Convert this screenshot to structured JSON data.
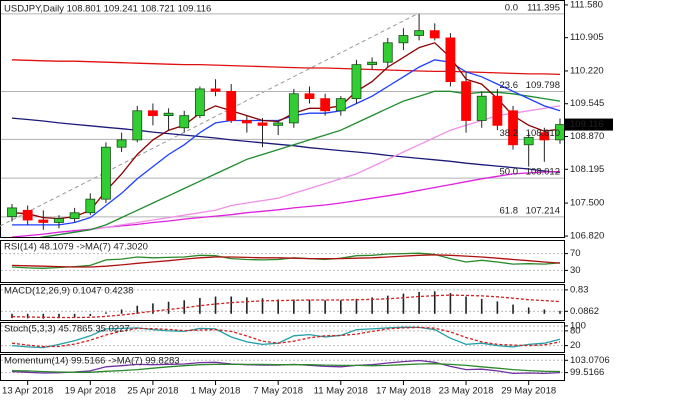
{
  "chart_data": {
    "type": "candlestick",
    "title": "USDJPY,Daily  108.801 109.241 108.721 109.116",
    "categories": [
      null,
      "13 Apr 2018",
      null,
      null,
      null,
      "19 Apr 2018",
      null,
      null,
      null,
      "25 Apr 2018",
      null,
      null,
      null,
      "1 May 2018",
      null,
      null,
      null,
      "7 May 2018",
      null,
      null,
      null,
      "11 May 2018",
      null,
      null,
      null,
      "17 May 2018",
      null,
      null,
      null,
      "23 May 2018",
      null,
      null,
      null,
      "29 May 2018",
      null,
      null
    ],
    "open": [
      107.22,
      107.35,
      107.15,
      107.1,
      107.18,
      107.3,
      107.58,
      108.65,
      108.8,
      109.4,
      109.3,
      109.05,
      109.3,
      109.85,
      109.8,
      109.2,
      109.15,
      109.1,
      109.15,
      109.75,
      109.65,
      109.4,
      109.65,
      110.35,
      110.4,
      110.8,
      110.95,
      111.05,
      110.9,
      110.0,
      109.2,
      109.7,
      109.4,
      108.7,
      108.95,
      108.801
    ],
    "high": [
      107.48,
      107.45,
      107.35,
      107.25,
      107.4,
      107.7,
      108.75,
      108.95,
      109.5,
      109.55,
      109.45,
      109.4,
      109.9,
      110.05,
      109.95,
      109.3,
      109.25,
      109.2,
      109.85,
      109.9,
      109.75,
      109.7,
      110.45,
      110.5,
      110.9,
      111.1,
      111.395,
      111.2,
      111.0,
      110.2,
      109.8,
      109.85,
      109.5,
      108.95,
      109.05,
      109.241
    ],
    "low": [
      107.12,
      107.05,
      106.95,
      106.98,
      107.1,
      107.25,
      107.5,
      108.55,
      108.75,
      109.1,
      109.0,
      108.95,
      109.25,
      109.7,
      109.15,
      108.95,
      108.65,
      108.9,
      109.05,
      109.55,
      109.3,
      109.3,
      109.55,
      110.25,
      110.3,
      110.65,
      110.85,
      110.85,
      109.9,
      108.95,
      109.05,
      109.0,
      108.6,
      108.25,
      108.35,
      108.721
    ],
    "close": [
      107.4,
      107.15,
      107.1,
      107.18,
      107.3,
      107.58,
      108.65,
      108.8,
      109.4,
      109.3,
      109.35,
      109.3,
      109.85,
      109.8,
      109.2,
      109.15,
      109.1,
      109.15,
      109.75,
      109.65,
      109.4,
      109.65,
      110.35,
      110.4,
      110.8,
      110.95,
      111.05,
      110.9,
      110.0,
      109.2,
      109.7,
      109.1,
      108.7,
      108.85,
      108.8,
      109.116
    ],
    "up_color": "#32cd32",
    "down_color": "#ff0000",
    "ylim": [
      106.78,
      111.64
    ],
    "yticks": [
      {
        "value": 111.58,
        "label": "111.580"
      },
      110.905,
      {
        "value": 110.22,
        "label": "110.220"
      },
      109.545,
      {
        "value": 108.87,
        "label": "108.870"
      },
      108.195,
      {
        "value": 107.5,
        "label": "107.500"
      },
      {
        "value": 106.82,
        "label": "106.820"
      }
    ],
    "last_price": 109.116,
    "fib_levels": [
      {
        "level": "0.0",
        "price": 111.395
      },
      {
        "level": "23.6",
        "price": 109.798
      },
      {
        "level": "38.2",
        "price": 108.81
      },
      {
        "level": "50.0",
        "price": 108.012
      },
      {
        "level": "61.8",
        "price": 107.214
      }
    ],
    "fib_price_labels": [
      "111.395",
      "109.798",
      "108.810",
      "108.012",
      "107.214"
    ],
    "series": [
      {
        "color": "#e01010",
        "values": [
          110.45,
          110.44,
          110.43,
          110.42,
          110.42,
          110.41,
          110.4,
          110.39,
          110.38,
          110.37,
          110.36,
          110.35,
          110.35,
          110.34,
          110.33,
          110.32,
          110.31,
          110.3,
          110.29,
          110.28,
          110.28,
          110.27,
          110.26,
          110.25,
          110.24,
          110.23,
          110.22,
          110.21,
          110.21,
          110.2,
          110.19,
          110.18,
          110.17,
          110.16,
          110.16,
          110.15
        ]
      },
      {
        "color": "#1a1a7a",
        "values": [
          109.25,
          109.22,
          109.19,
          109.15,
          109.12,
          109.09,
          109.06,
          109.03,
          109.0,
          108.96,
          108.93,
          108.9,
          108.87,
          108.84,
          108.8,
          108.77,
          108.74,
          108.71,
          108.68,
          108.64,
          108.61,
          108.58,
          108.55,
          108.52,
          108.48,
          108.45,
          108.42,
          108.39,
          108.36,
          108.32,
          108.29,
          108.26,
          108.23,
          108.2,
          108.16,
          108.13
        ]
      },
      {
        "color": "#e020e0",
        "values": [
          106.8,
          106.83,
          106.86,
          106.9,
          106.93,
          106.96,
          107.0,
          107.03,
          107.06,
          107.1,
          107.13,
          107.17,
          107.2,
          107.23,
          107.26,
          107.3,
          107.33,
          107.36,
          107.4,
          107.43,
          107.46,
          107.5,
          107.55,
          107.6,
          107.65,
          107.7,
          107.76,
          107.82,
          107.88,
          107.94,
          108.0,
          108.05,
          108.1,
          108.12,
          108.14,
          108.15
        ]
      },
      {
        "color": "#f090e8",
        "values": [
          106.7,
          106.75,
          106.8,
          106.85,
          106.9,
          106.95,
          107.0,
          107.05,
          107.1,
          107.15,
          107.2,
          107.25,
          107.3,
          107.35,
          107.45,
          107.5,
          107.55,
          107.6,
          107.7,
          107.8,
          107.9,
          108.0,
          108.1,
          108.25,
          108.4,
          108.55,
          108.7,
          108.85,
          109.0,
          109.1,
          109.2,
          109.3,
          109.35,
          109.4,
          109.45,
          109.5
        ]
      },
      {
        "color": "#1e8c2e",
        "values": [
          106.7,
          106.75,
          106.8,
          106.85,
          106.9,
          106.95,
          107.05,
          107.2,
          107.35,
          107.5,
          107.65,
          107.8,
          107.95,
          108.1,
          108.25,
          108.4,
          108.5,
          108.6,
          108.7,
          108.8,
          108.9,
          109.0,
          109.15,
          109.3,
          109.45,
          109.6,
          109.7,
          109.8,
          109.8,
          109.75,
          109.78,
          109.78,
          109.75,
          109.7,
          109.65,
          109.6
        ]
      },
      {
        "color": "#1f3fff",
        "values": [
          107.05,
          107.05,
          107.05,
          107.05,
          107.1,
          107.2,
          107.45,
          107.7,
          108.0,
          108.25,
          108.5,
          108.7,
          108.95,
          109.15,
          109.2,
          109.2,
          109.2,
          109.2,
          109.3,
          109.35,
          109.35,
          109.4,
          109.55,
          109.7,
          109.9,
          110.1,
          110.3,
          110.45,
          110.4,
          110.2,
          110.1,
          109.95,
          109.8,
          109.65,
          109.5,
          109.4
        ]
      },
      {
        "color": "#8b0000",
        "values": [
          107.3,
          107.28,
          107.2,
          107.18,
          107.22,
          107.35,
          107.75,
          108.1,
          108.5,
          108.8,
          109.0,
          109.1,
          109.35,
          109.5,
          109.4,
          109.3,
          109.2,
          109.18,
          109.35,
          109.45,
          109.45,
          109.5,
          109.8,
          110.0,
          110.3,
          110.5,
          110.7,
          110.8,
          110.5,
          110.05,
          109.95,
          109.65,
          109.3,
          109.1,
          108.98,
          109.02
        ]
      }
    ],
    "indicators": [
      {
        "title": "RSI(14) 48.1079 ->MA(7) 47.3020",
        "ylim": [
          0,
          100
        ],
        "yticks": [
          70,
          30
        ],
        "series": [
          {
            "color": "#2a8a2a",
            "values": [
              38,
              36,
              35,
              37,
              39,
              42,
              55,
              57,
              62,
              60,
              61,
              62,
              66,
              65,
              58,
              56,
              55,
              56,
              60,
              58,
              56,
              59,
              65,
              66,
              69,
              70,
              71,
              68,
              58,
              50,
              54,
              50,
              45,
              46,
              45,
              48.1079
            ]
          },
          {
            "color": "#b01010",
            "values": [
              42,
              41,
              40,
              39,
              38,
              38,
              40,
              43,
              47,
              50,
              53,
              57,
              60,
              62,
              62,
              61,
              60,
              60,
              59,
              58,
              58,
              58,
              59,
              60,
              62,
              64,
              66,
              67,
              66,
              64,
              62,
              59,
              56,
              53,
              50,
              47.302
            ]
          }
        ]
      },
      {
        "title": "MACD(12,26,9) 0.1047 0.4238",
        "ylim": [
          -0.25,
          1.0
        ],
        "yticks": [
          0.83,
          0.0862
        ],
        "histogram": [
          -0.15,
          -0.16,
          -0.17,
          -0.15,
          -0.12,
          -0.08,
          0.05,
          0.15,
          0.28,
          0.36,
          0.42,
          0.47,
          0.55,
          0.6,
          0.6,
          0.57,
          0.54,
          0.5,
          0.5,
          0.49,
          0.47,
          0.47,
          0.52,
          0.57,
          0.63,
          0.7,
          0.76,
          0.78,
          0.72,
          0.6,
          0.52,
          0.43,
          0.32,
          0.22,
          0.15,
          0.1047
        ],
        "series": [
          {
            "color": "#d02020",
            "dashed": true,
            "values": [
              -0.1,
              -0.11,
              -0.12,
              -0.13,
              -0.13,
              -0.12,
              -0.09,
              -0.04,
              0.02,
              0.09,
              0.15,
              0.21,
              0.28,
              0.34,
              0.39,
              0.42,
              0.45,
              0.46,
              0.47,
              0.48,
              0.48,
              0.48,
              0.49,
              0.5,
              0.52,
              0.56,
              0.6,
              0.63,
              0.65,
              0.64,
              0.62,
              0.59,
              0.54,
              0.49,
              0.46,
              0.4238
            ]
          }
        ]
      },
      {
        "title": "Stoch(5,3,3) 45.7865 35.0227",
        "ylim": [
          -10,
          112
        ],
        "yticks": [
          100,
          80,
          20
        ],
        "series": [
          {
            "color": "#20a0a8",
            "values": [
              20,
              15,
              12,
              25,
              40,
              60,
              88,
              90,
              92,
              85,
              80,
              78,
              90,
              88,
              55,
              35,
              25,
              30,
              60,
              65,
              55,
              62,
              85,
              88,
              92,
              95,
              94,
              85,
              50,
              25,
              30,
              20,
              15,
              25,
              30,
              45.7865
            ]
          },
          {
            "color": "#d02020",
            "dashed": true,
            "values": [
              30,
              22,
              16,
              17,
              26,
              42,
              63,
              79,
              90,
              89,
              86,
              81,
              83,
              85,
              78,
              59,
              38,
              30,
              38,
              52,
              60,
              61,
              67,
              78,
              88,
              92,
              94,
              91,
              76,
              53,
              35,
              25,
              22,
              20,
              23,
              35.0227
            ]
          }
        ]
      },
      {
        "title": "Momentum(14) 99.5166 ->MA(7) 99.8283",
        "ylim": [
          97.1,
          104.6
        ],
        "yticks": [
          103.0706,
          99.5166
        ],
        "series": [
          {
            "color": "#7030a0",
            "values": [
              99.8,
              99.6,
              99.4,
              99.5,
              99.7,
              100.0,
              101.2,
              101.5,
              101.9,
              101.8,
              101.9,
              102.0,
              102.4,
              102.5,
              102.0,
              101.8,
              101.7,
              101.7,
              101.9,
              101.6,
              101.3,
              101.2,
              101.6,
              101.8,
              102.3,
              102.7,
              103.0,
              102.5,
              101.3,
              100.4,
              100.5,
              100.0,
              99.3,
              99.4,
              99.3,
              99.5166
            ]
          },
          {
            "color": "#2a8a2a",
            "values": [
              100.1,
              100.0,
              99.8,
              99.7,
              99.6,
              99.6,
              99.9,
              100.1,
              100.4,
              100.8,
              101.2,
              101.5,
              101.8,
              101.9,
              101.9,
              101.9,
              101.9,
              101.8,
              101.8,
              101.8,
              101.7,
              101.6,
              101.6,
              101.5,
              101.6,
              101.8,
              102.0,
              102.1,
              101.9,
              101.6,
              101.2,
              100.8,
              100.4,
              100.1,
              99.9,
              99.8283
            ]
          }
        ]
      }
    ]
  }
}
